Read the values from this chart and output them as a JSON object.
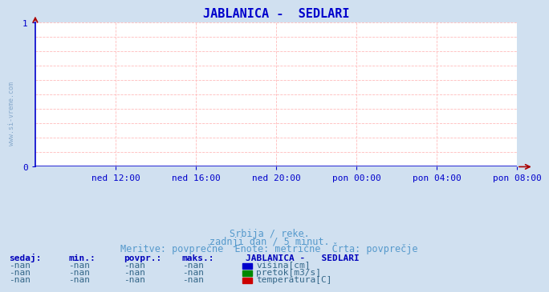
{
  "title": "JABLANICA -  SEDLARI",
  "title_color": "#0000cc",
  "title_fontsize": 11,
  "bg_color": "#d0e0f0",
  "plot_bg_color": "#ffffff",
  "grid_color_h": "#ffbbbb",
  "grid_color_v": "#ffbbbb",
  "axis_line_color": "#0000cc",
  "tick_label_color": "#0000cc",
  "watermark": "www.si-vreme.com",
  "watermark_color": "#88aacc",
  "ylim": [
    0,
    1
  ],
  "xlim": [
    0,
    288
  ],
  "x_tick_labels": [
    "ned 12:00",
    "ned 16:00",
    "ned 20:00",
    "pon 00:00",
    "pon 04:00",
    "pon 08:00"
  ],
  "x_tick_positions": [
    48,
    96,
    144,
    192,
    240,
    288
  ],
  "subtitle1": "Srbija / reke.",
  "subtitle2": "zadnji dan / 5 minut.",
  "subtitle3": "Meritve: povprečne  Enote: metrične  Črta: povprečje",
  "subtitle_color": "#5599cc",
  "subtitle_fontsize": 8.5,
  "table_header_color": "#0000bb",
  "table_value_color": "#336688",
  "table_headers": [
    "sedaj:",
    "min.:",
    "povpr.:",
    "maks.:"
  ],
  "table_values": [
    "-nan",
    "-nan",
    "-nan",
    "-nan"
  ],
  "legend_title": "JABLANICA -   SEDLARI",
  "legend_items": [
    {
      "label": "višina[cm]",
      "color": "#0000cc"
    },
    {
      "label": "pretok[m3/s]",
      "color": "#008800"
    },
    {
      "label": "temperatura[C]",
      "color": "#cc0000"
    }
  ],
  "arrow_color": "#aa0000",
  "h_grid_positions": [
    0.1,
    0.2,
    0.3,
    0.4,
    0.5,
    0.6,
    0.7,
    0.8,
    0.9,
    1.0
  ],
  "v_grid_positions": [
    48,
    96,
    144,
    192,
    240,
    288
  ]
}
